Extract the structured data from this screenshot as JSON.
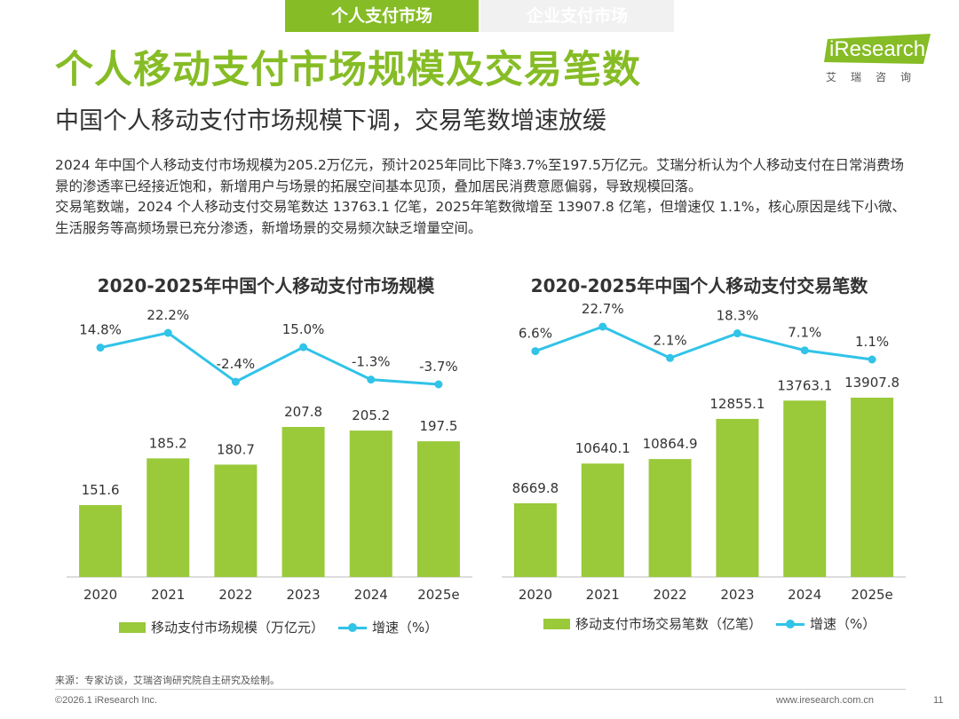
{
  "tabs": [
    {
      "label": "个人支付市场",
      "active": true
    },
    {
      "label": "企业支付市场",
      "active": false
    }
  ],
  "title": "个人移动支付市场规模及交易笔数",
  "subtitle": "中国个人移动支付市场规模下调，交易笔数增速放缓",
  "logo": {
    "brand": "iResearch",
    "sub": "艾瑞咨询"
  },
  "paragraphs": [
    "2024 年中国个人移动支付市场规模为205.2万亿元，预计2025年同比下降3.7%至197.5万亿元。艾瑞分析认为个人移动支付在日常消费场景的渗透率已经接近饱和，新增用户与场景的拓展空间基本见顶，叠加居民消费意愿偏弱，导致规模回落。",
    "交易笔数端，2024 个人移动支付交易笔数达 13763.1 亿笔，2025年笔数微增至 13907.8 亿笔，但增速仅 1.1%，核心原因是线下小微、生活服务等高频场景已充分渗透，新增场景的交易频次缺乏增量空间。"
  ],
  "chart_data": [
    {
      "type": "bar",
      "title": "2020-2025年中国个人移动支付市场规模",
      "categories": [
        "2020",
        "2021",
        "2022",
        "2023",
        "2024",
        "2025e"
      ],
      "series": [
        {
          "name": "移动支付市场规模（万亿元）",
          "type": "bar",
          "values": [
            151.6,
            185.2,
            180.7,
            207.8,
            205.2,
            197.5
          ]
        },
        {
          "name": "增速（%）",
          "type": "line",
          "values": [
            14.8,
            22.2,
            -2.4,
            15.0,
            -1.3,
            -3.7
          ],
          "labels": [
            "14.8%",
            "22.2%",
            "-2.4%",
            "15.0%",
            "-1.3%",
            "-3.7%"
          ]
        }
      ],
      "bar_labels": [
        "151.6",
        "185.2",
        "180.7",
        "207.8",
        "205.2",
        "197.5"
      ],
      "legend": "bottom",
      "bar_color": "#9ac93a",
      "line_color": "#31c3e8"
    },
    {
      "type": "bar",
      "title": "2020-2025年中国个人移动支付交易笔数",
      "categories": [
        "2020",
        "2021",
        "2022",
        "2023",
        "2024",
        "2025e"
      ],
      "series": [
        {
          "name": "移动支付市场交易笔数（亿笔）",
          "type": "bar",
          "values": [
            8669.8,
            10640.1,
            10864.9,
            12855.1,
            13763.1,
            13907.8
          ]
        },
        {
          "name": "增速（%）",
          "type": "line",
          "values": [
            6.6,
            22.7,
            2.1,
            18.3,
            7.1,
            1.1
          ],
          "labels": [
            "6.6%",
            "22.7%",
            "2.1%",
            "18.3%",
            "7.1%",
            "1.1%"
          ]
        }
      ],
      "bar_labels": [
        "8669.8",
        "10640.1",
        "10864.9",
        "12855.1",
        "13763.1",
        "13907.8"
      ],
      "legend": "bottom",
      "bar_color": "#9ac93a",
      "line_color": "#31c3e8"
    }
  ],
  "source": "来源：专家访谈，艾瑞咨询研究院自主研究及绘制。",
  "footer": {
    "copyright": "©2026.1 iResearch Inc.",
    "site": "www.iresearch.com.cn",
    "page": "11"
  },
  "colors": {
    "accent": "#86bc25",
    "bar": "#9ac93a",
    "line": "#31c3e8"
  }
}
